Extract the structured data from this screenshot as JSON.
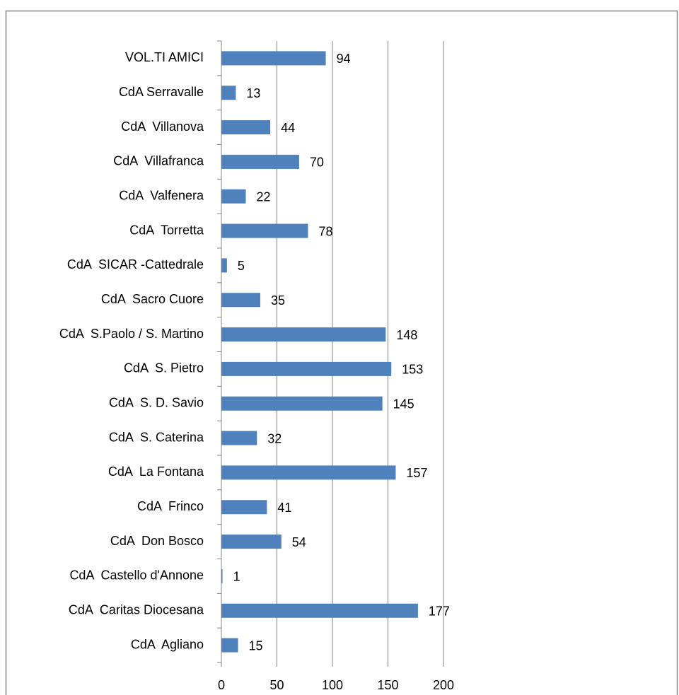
{
  "chart_data": {
    "type": "bar",
    "orientation": "horizontal",
    "categories": [
      "VOL.TI AMICI",
      "CdA Serravalle",
      "CdA  Villanova",
      "CdA  Villafranca",
      "CdA  Valfenera",
      "CdA  Torretta",
      "CdA  SICAR -Cattedrale",
      "CdA  Sacro Cuore",
      "CdA  S.Paolo / S. Martino",
      "CdA  S. Pietro",
      "CdA  S. D. Savio",
      "CdA  S. Caterina",
      "CdA  La Fontana",
      "CdA  Frinco",
      "CdA  Don Bosco",
      "CdA  Castello d'Annone",
      "CdA  Caritas Diocesana",
      "CdA  Agliano"
    ],
    "values": [
      94,
      13,
      44,
      70,
      22,
      78,
      5,
      35,
      148,
      153,
      145,
      32,
      157,
      41,
      54,
      1,
      177,
      15
    ],
    "color": "#4f81bd",
    "xlim": [
      0,
      200
    ],
    "xticks": [
      0,
      50,
      100,
      150,
      200
    ],
    "grid": true
  }
}
